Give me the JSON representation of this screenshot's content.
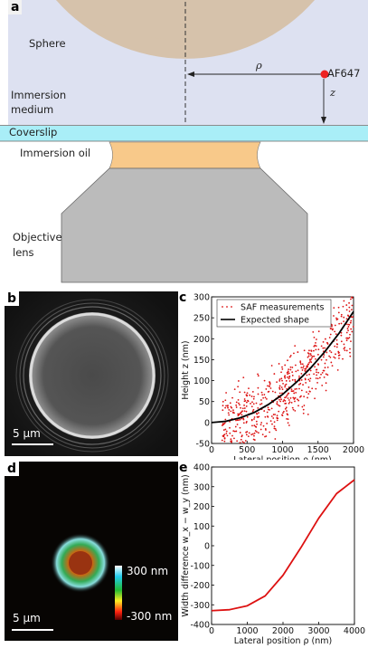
{
  "panel_a": {
    "label": "a",
    "sphere_label": "Sphere",
    "medium_label_1": "Immersion",
    "medium_label_2": "medium",
    "coverslip_label": "Coverslip",
    "oil_label": "Immersion oil",
    "objective_label_1": "Objective",
    "objective_label_2": "lens",
    "rho_symbol": "ρ",
    "z_symbol": "z",
    "fluor_label": "AF647",
    "colors": {
      "medium": "#dde1f1",
      "sphere": "#d6c2ab",
      "coverslip": "#a9eef7",
      "oil": "#f8c98a",
      "objective": "#bbbbbb",
      "fluor": "#ee2222"
    }
  },
  "panel_b": {
    "label": "b",
    "scale_text": "5 µm"
  },
  "panel_c": {
    "label": "c",
    "chart_data": {
      "type": "scatter",
      "xlabel": "Lateral position ρ (nm)",
      "ylabel": "Height z (nm)",
      "xlim": [
        0,
        2000
      ],
      "ylim": [
        -50,
        300
      ],
      "xticks": [
        0,
        500,
        1000,
        1500,
        2000
      ],
      "yticks": [
        -50,
        0,
        50,
        100,
        150,
        200,
        250,
        300
      ],
      "series": [
        {
          "name": "SAF measurements",
          "style": "points",
          "color": "#dd1111",
          "values": "approximately 600 scattered points around the expected curve, spread ±70 nm"
        },
        {
          "name": "Expected shape",
          "style": "line",
          "color": "#000000",
          "x": [
            0,
            200,
            400,
            600,
            800,
            1000,
            1200,
            1400,
            1600,
            1800,
            2000
          ],
          "y": [
            0,
            3,
            11,
            24,
            43,
            67,
            97,
            131,
            170,
            214,
            265
          ]
        }
      ],
      "legend": "top-left"
    }
  },
  "panel_d": {
    "label": "d",
    "scale_text": "5 µm",
    "colorbar_top": "300 nm",
    "colorbar_bottom": "-300 nm"
  },
  "panel_e": {
    "label": "e",
    "chart_data": {
      "type": "line",
      "xlabel": "Lateral position ρ (nm)",
      "ylabel": "Width difference w_x − w_y (nm)",
      "xlim": [
        0,
        4000
      ],
      "ylim": [
        -400,
        400
      ],
      "xticks": [
        0,
        1000,
        2000,
        3000,
        4000
      ],
      "yticks": [
        -400,
        -300,
        -200,
        -100,
        0,
        100,
        200,
        300,
        400
      ],
      "series": [
        {
          "color": "#dd1111",
          "x": [
            0,
            500,
            1000,
            1500,
            2000,
            2500,
            3000,
            3500,
            4000
          ],
          "y": [
            -330,
            -325,
            -305,
            -255,
            -150,
            -10,
            140,
            265,
            335
          ]
        }
      ]
    }
  }
}
